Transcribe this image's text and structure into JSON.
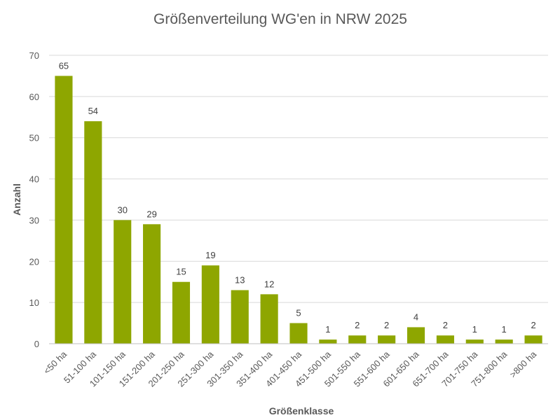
{
  "chart_data": {
    "type": "bar",
    "title": "Größenverteilung WG'en in NRW 2025",
    "xlabel": "Größenklasse",
    "ylabel": "Anzahl",
    "categories": [
      "<50 ha",
      "51-100 ha",
      "101-150 ha",
      "151-200 ha",
      "201-250 ha",
      "251-300 ha",
      "301-350 ha",
      "351-400 ha",
      "401-450 ha",
      "451-500 ha",
      "501-550 ha",
      "551-600 ha",
      "601-650 ha",
      "651-700 ha",
      "701-750 ha",
      "751-800 ha",
      ">800 ha"
    ],
    "values": [
      65,
      54,
      30,
      29,
      15,
      19,
      13,
      12,
      5,
      1,
      2,
      2,
      4,
      2,
      1,
      1,
      2
    ],
    "ylim": [
      0,
      70
    ],
    "yticks": [
      0,
      10,
      20,
      30,
      40,
      50,
      60,
      70
    ],
    "grid": true,
    "data_labels": true,
    "bar_color": "#8ea600"
  }
}
